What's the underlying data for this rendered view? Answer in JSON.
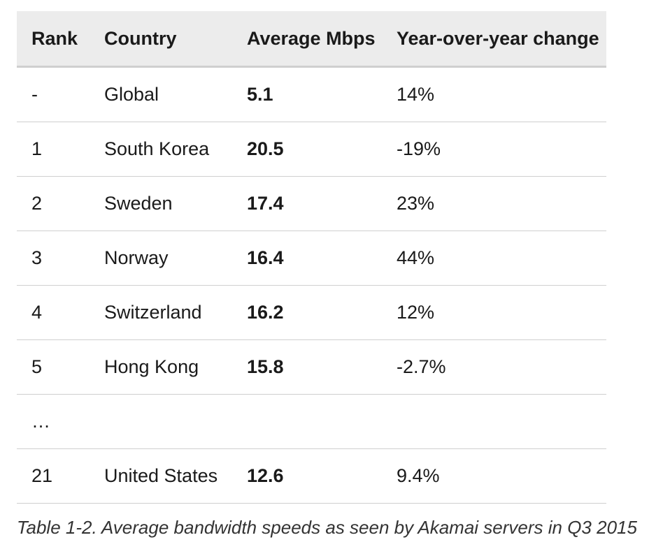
{
  "table": {
    "headers": [
      "Rank",
      "Country",
      "Average Mbps",
      "Year-over-year change"
    ],
    "rows": [
      {
        "rank": "-",
        "country": "Global",
        "mbps": "5.1",
        "change": "14%"
      },
      {
        "rank": "1",
        "country": "South Korea",
        "mbps": "20.5",
        "change": "-19%"
      },
      {
        "rank": "2",
        "country": "Sweden",
        "mbps": "17.4",
        "change": "23%"
      },
      {
        "rank": "3",
        "country": "Norway",
        "mbps": "16.4",
        "change": "44%"
      },
      {
        "rank": "4",
        "country": "Switzerland",
        "mbps": "16.2",
        "change": "12%"
      },
      {
        "rank": "5",
        "country": "Hong Kong",
        "mbps": "15.8",
        "change": "-2.7%"
      },
      {
        "rank": "…",
        "country": "",
        "mbps": "",
        "change": ""
      },
      {
        "rank": "21",
        "country": "United States",
        "mbps": "12.6",
        "change": "9.4%"
      }
    ]
  },
  "caption": "Table 1-2. Average bandwidth speeds as seen by Akamai servers in Q3 2015"
}
